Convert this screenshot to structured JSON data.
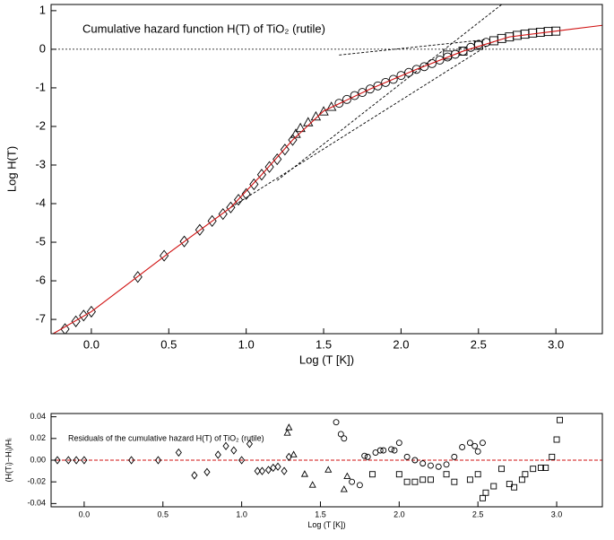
{
  "chart_data": [
    {
      "type": "scatter",
      "title": "Cumulative hazard function H(T) of TiO₂ (rutile)",
      "x_label": "Log (T [K])",
      "y_label": "Log H(T)",
      "xlim": [
        -0.26,
        3.3
      ],
      "ylim": [
        -7.37,
        1.16
      ],
      "xticks": [
        {
          "value": 0,
          "label": "0.0"
        },
        0.5,
        {
          "value": 1,
          "label": "1.0"
        },
        1.5,
        {
          "value": 2,
          "label": "2.0"
        },
        2.5,
        {
          "value": 3,
          "label": "3.0"
        }
      ],
      "yticks": [
        -7,
        -6,
        -5,
        -4,
        -3,
        -2,
        -1,
        0,
        1
      ],
      "hline": 0,
      "series": [
        {
          "marker": "diamond",
          "color": "#000000",
          "x": [
            -0.17,
            -0.1,
            -0.05,
            0.0,
            0.3,
            0.47,
            0.6,
            0.7,
            0.78,
            0.85,
            0.9,
            0.95,
            1.0,
            1.05,
            1.1,
            1.15,
            1.2,
            1.25,
            1.3
          ],
          "values": [
            -7.25,
            -7.05,
            -6.9,
            -6.8,
            -5.9,
            -5.35,
            -4.98,
            -4.68,
            -4.45,
            -4.27,
            -4.1,
            -3.9,
            -3.75,
            -3.5,
            -3.25,
            -3.05,
            -2.85,
            -2.6,
            -2.35
          ]
        },
        {
          "marker": "triangle",
          "color": "#000000",
          "x": [
            1.32,
            1.35,
            1.4,
            1.45,
            1.5,
            1.55
          ],
          "values": [
            -2.2,
            -2.05,
            -1.9,
            -1.75,
            -1.62,
            -1.5
          ]
        },
        {
          "marker": "circle",
          "color": "#000000",
          "x": [
            1.6,
            1.65,
            1.7,
            1.75,
            1.8,
            1.85,
            1.9,
            1.95,
            2.0,
            2.05,
            2.1,
            2.15,
            2.2,
            2.25,
            2.3,
            2.35,
            2.4,
            2.45,
            2.5,
            2.55
          ],
          "values": [
            -1.4,
            -1.3,
            -1.2,
            -1.12,
            -1.03,
            -0.95,
            -0.86,
            -0.78,
            -0.68,
            -0.6,
            -0.52,
            -0.45,
            -0.37,
            -0.28,
            -0.2,
            -0.13,
            -0.05,
            0.05,
            0.12,
            0.18
          ]
        },
        {
          "marker": "square",
          "color": "#000000",
          "x": [
            2.3,
            2.4,
            2.5,
            2.6,
            2.65,
            2.7,
            2.75,
            2.8,
            2.85,
            2.9,
            2.95,
            3.0
          ],
          "values": [
            -0.15,
            -0.05,
            0.1,
            0.22,
            0.28,
            0.32,
            0.36,
            0.39,
            0.42,
            0.44,
            0.46,
            0.47
          ]
        }
      ],
      "lines": [
        {
          "color": "#000000",
          "dash": true,
          "x": [
            0.9,
            2.6
          ],
          "values": [
            -4.1,
            0.2
          ]
        },
        {
          "color": "#000000",
          "dash": true,
          "x": [
            1.2,
            2.65
          ],
          "values": [
            -3.4,
            1.16
          ]
        },
        {
          "color": "#000000",
          "dash": true,
          "x": [
            1.6,
            2.55
          ],
          "values": [
            -0.15,
            0.25
          ]
        },
        {
          "color": "#d01010",
          "dash": false,
          "x": [
            -0.26,
            0,
            0.5,
            0.9,
            1.1,
            1.3,
            1.5,
            1.8,
            2.1,
            2.4,
            2.7,
            3.0,
            3.3
          ],
          "values": [
            -7.4,
            -6.8,
            -5.28,
            -4.1,
            -3.25,
            -2.35,
            -1.6,
            -1.03,
            -0.52,
            -0.05,
            0.32,
            0.47,
            0.62
          ]
        }
      ]
    },
    {
      "type": "scatter",
      "title": "Residuals of the cumulative hazard H(T) of TiO₂ (rutile)",
      "x_label": "Log (T [K])",
      "y_label": "(H(Tᵢ)−Hᵢ)/Hᵢ",
      "xlim": [
        -0.21,
        3.29
      ],
      "ylim": [
        -0.043,
        0.043
      ],
      "xticks": [
        {
          "value": 0,
          "label": "0.0"
        },
        0.5,
        {
          "value": 1,
          "label": "1.0"
        },
        1.5,
        {
          "value": 2,
          "label": "2.0"
        },
        2.5,
        {
          "value": 3,
          "label": "3.0"
        }
      ],
      "yticks": [
        0.04,
        0.02,
        {
          "value": 0,
          "label": "0.00"
        },
        -0.02,
        -0.04
      ],
      "zero_line_color": "#d01010",
      "series": [
        {
          "marker": "diamond",
          "color": "#000000",
          "x": [
            -0.17,
            -0.1,
            -0.05,
            0.0,
            0.3,
            0.47,
            0.6,
            0.7,
            0.78,
            0.85,
            0.9,
            0.95,
            1.0,
            1.05,
            1.1,
            1.13,
            1.17,
            1.2,
            1.23,
            1.27,
            1.3
          ],
          "values": [
            0,
            0,
            0,
            0,
            0,
            0,
            0.007,
            -0.014,
            -0.011,
            0.005,
            0.013,
            0.009,
            0.0,
            0.015,
            -0.01,
            -0.01,
            -0.009,
            -0.007,
            -0.006,
            -0.01,
            0.003
          ]
        },
        {
          "marker": "triangle",
          "color": "#000000",
          "x": [
            1.29,
            1.3,
            1.33,
            1.4,
            1.45,
            1.55,
            1.65,
            1.67
          ],
          "values": [
            0.025,
            0.03,
            0.005,
            -0.013,
            -0.023,
            -0.009,
            -0.027,
            -0.015
          ]
        },
        {
          "marker": "circle",
          "color": "#000000",
          "x": [
            1.6,
            1.63,
            1.65,
            1.7,
            1.75,
            1.78,
            1.8,
            1.85,
            1.88,
            1.9,
            1.95,
            1.97,
            2.0,
            2.05,
            2.1,
            2.15,
            2.2,
            2.25,
            2.3,
            2.35,
            2.4,
            2.45,
            2.48,
            2.5,
            2.53
          ],
          "values": [
            0.035,
            0.024,
            0.02,
            -0.02,
            -0.023,
            0.004,
            0.003,
            0.007,
            0.009,
            0.009,
            0.01,
            0.009,
            0.016,
            0.003,
            0.0,
            -0.003,
            -0.005,
            -0.006,
            -0.004,
            0.003,
            0.012,
            0.016,
            0.013,
            0.008,
            0.016
          ]
        },
        {
          "marker": "square",
          "color": "#000000",
          "x": [
            1.83,
            2.0,
            2.05,
            2.1,
            2.15,
            2.2,
            2.3,
            2.35,
            2.45,
            2.5,
            2.53,
            2.55,
            2.6,
            2.65,
            2.7,
            2.73,
            2.78,
            2.8,
            2.85,
            2.9,
            2.93,
            2.97,
            3.0,
            3.02
          ],
          "values": [
            -0.013,
            -0.013,
            -0.02,
            -0.02,
            -0.018,
            -0.018,
            -0.013,
            -0.02,
            -0.018,
            -0.013,
            -0.035,
            -0.03,
            -0.024,
            -0.008,
            -0.022,
            -0.025,
            -0.018,
            -0.013,
            -0.008,
            -0.007,
            -0.007,
            0.003,
            0.019,
            0.037
          ]
        }
      ]
    }
  ]
}
